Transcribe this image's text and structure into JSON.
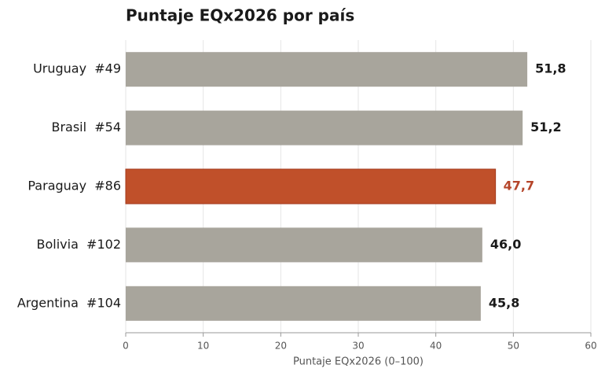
{
  "chart_data": {
    "type": "bar",
    "orientation": "horizontal",
    "title": "Puntaje EQx2026 por país",
    "x_label": "Puntaje EQx2026 (0–100)",
    "categories": [
      "Uruguay  #49",
      "Brasil  #54",
      "Paraguay  #86",
      "Bolivia  #102",
      "Argentina  #104"
    ],
    "values": [
      51.8,
      51.2,
      47.7,
      46.0,
      45.8
    ],
    "value_labels": [
      "51,8",
      "51,2",
      "47,7",
      "46,0",
      "45,8"
    ],
    "colors": [
      "#a8a59c",
      "#a8a59c",
      "#c0502a",
      "#a8a59c",
      "#a8a59c"
    ],
    "value_label_colors": [
      "#1a1a1a",
      "#1a1a1a",
      "#b5452a",
      "#1a1a1a",
      "#1a1a1a"
    ],
    "xlim": [
      0,
      60
    ],
    "xticks": [
      0,
      10,
      20,
      30,
      40,
      50,
      60
    ],
    "grid": true
  }
}
